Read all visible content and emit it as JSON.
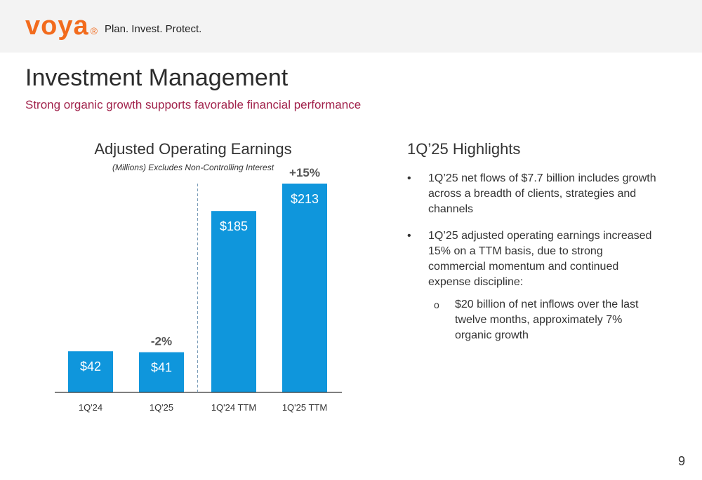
{
  "header": {
    "logo_text": "voya",
    "logo_mark": "®",
    "tagline": "Plan. Invest. Protect."
  },
  "page": {
    "title": "Investment Management",
    "subtitle": "Strong organic growth supports favorable financial performance",
    "page_number": "9"
  },
  "colors": {
    "brand_orange": "#f26b1d",
    "subtitle_magenta": "#a1224b",
    "bar_blue": "#0f96dc",
    "header_gray": "#f3f3f3"
  },
  "chart_data": {
    "type": "bar",
    "title": "Adjusted Operating Earnings",
    "subtitle": "(Millions) Excludes Non-Controlling Interest",
    "categories": [
      "1Q'24",
      "1Q'25",
      "1Q'24 TTM",
      "1Q'25 TTM"
    ],
    "values": [
      42,
      41,
      185,
      213
    ],
    "value_labels": [
      "$42",
      "$41",
      "$185",
      "$213"
    ],
    "change_labels": [
      {
        "after_category": "1Q'25",
        "text": "-2%"
      },
      {
        "after_category": "1Q'25 TTM",
        "text": "+15%"
      }
    ],
    "ylim": [
      0,
      213
    ],
    "divider": "dashed line between 1Q'25 and 1Q'24 TTM",
    "grid": false
  },
  "highlights": {
    "title": "1Q’25 Highlights",
    "bullets": [
      "1Q’25 net flows of $7.7 billion includes growth across a breadth of clients, strategies and channels",
      "1Q’25 adjusted operating earnings increased 15% on a TTM basis, due to strong commercial momentum and continued expense discipline:"
    ],
    "sub_bullets": [
      "$20 billion of net inflows over the last twelve months, approximately 7% organic growth"
    ],
    "bullet_mark": "•",
    "sub_bullet_mark": "o"
  }
}
